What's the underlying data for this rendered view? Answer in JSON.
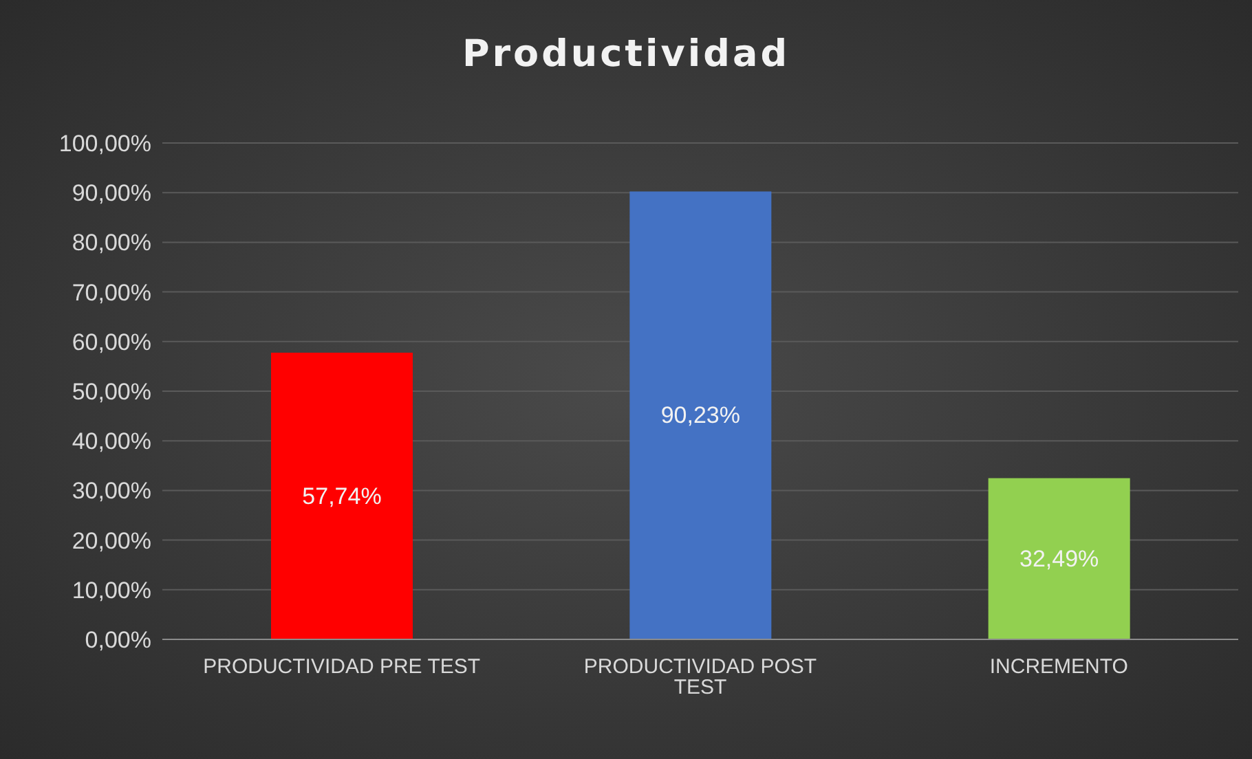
{
  "chart_data": {
    "type": "bar",
    "title": "Productividad",
    "categories": [
      "PRODUCTIVIDAD PRE TEST",
      "PRODUCTIVIDAD POST TEST",
      "INCREMENTO"
    ],
    "values": [
      57.74,
      90.23,
      32.49
    ],
    "colors": [
      "#ff0000",
      "#4472c4",
      "#92d050"
    ],
    "value_labels": [
      "57,74%",
      "90,23%",
      "32,49%"
    ],
    "ylim": [
      0,
      100
    ],
    "yticks": [
      {
        "value": 0,
        "label": "0,00%"
      },
      {
        "value": 10,
        "label": "10,00%"
      },
      {
        "value": 20,
        "label": "20,00%"
      },
      {
        "value": 30,
        "label": "30,00%"
      },
      {
        "value": 40,
        "label": "40,00%"
      },
      {
        "value": 50,
        "label": "50,00%"
      },
      {
        "value": 60,
        "label": "60,00%"
      },
      {
        "value": 70,
        "label": "70,00%"
      },
      {
        "value": 80,
        "label": "80,00%"
      },
      {
        "value": 90,
        "label": "90,00%"
      },
      {
        "value": 100,
        "label": "100,00%"
      }
    ],
    "grid": "y"
  }
}
